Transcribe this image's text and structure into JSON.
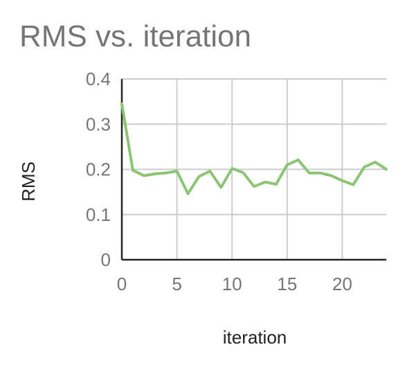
{
  "chart_data": {
    "type": "line",
    "title": "RMS vs. iteration",
    "xlabel": "iteration",
    "ylabel": "RMS",
    "xlim": [
      0,
      24
    ],
    "ylim": [
      0,
      0.4
    ],
    "x_ticks": [
      0,
      5,
      10,
      15,
      20
    ],
    "y_ticks": [
      0,
      0.1,
      0.2,
      0.3,
      0.4
    ],
    "x_tick_labels": [
      "0",
      "5",
      "10",
      "15",
      "20"
    ],
    "y_tick_labels": [
      "0",
      "0.1",
      "0.2",
      "0.3",
      "0.4"
    ],
    "grid": true,
    "legend": "none",
    "series": [
      {
        "color": "#8bc573",
        "x": [
          0,
          1,
          2,
          3,
          4,
          5,
          6,
          7,
          8,
          9,
          10,
          11,
          12,
          13,
          14,
          15,
          16,
          17,
          18,
          19,
          20,
          21,
          22,
          23,
          24
        ],
        "y": [
          0.345,
          0.198,
          0.186,
          0.19,
          0.192,
          0.196,
          0.146,
          0.184,
          0.196,
          0.16,
          0.202,
          0.193,
          0.162,
          0.172,
          0.167,
          0.21,
          0.221,
          0.192,
          0.192,
          0.186,
          0.175,
          0.166,
          0.205,
          0.216,
          0.2
        ]
      }
    ]
  }
}
